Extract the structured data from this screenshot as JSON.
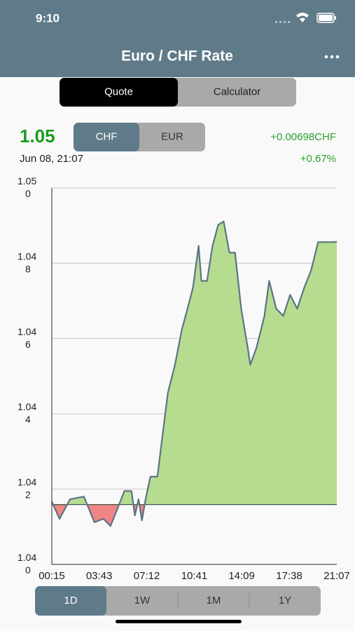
{
  "status_bar": {
    "time": "9:10"
  },
  "header": {
    "title": "Euro / CHF Rate"
  },
  "segments": {
    "items": [
      "Quote",
      "Calculator"
    ],
    "selected": 0
  },
  "quote": {
    "rate": "1.05",
    "currencies": [
      "CHF",
      "EUR"
    ],
    "selected_currency": 0,
    "change": "+0.00698CHF",
    "change_percent": "+0.67%",
    "timestamp": "Jun 08, 21:07"
  },
  "chart_data": {
    "type": "line",
    "x": [
      "00:15",
      "00:49",
      "01:35",
      "02:36",
      "03:22",
      "04:02",
      "04:33",
      "05:10",
      "05:34",
      "06:05",
      "06:20",
      "06:36",
      "06:51",
      "07:07",
      "07:28",
      "07:59",
      "08:14",
      "08:45",
      "09:16",
      "09:46",
      "10:11",
      "10:35",
      "11:00",
      "11:12",
      "11:37",
      "12:01",
      "12:26",
      "12:50",
      "13:15",
      "13:40",
      "14:07",
      "14:38",
      "14:47",
      "15:15",
      "15:49",
      "16:10",
      "16:41",
      "17:12",
      "17:42",
      "18:13",
      "18:44",
      "19:14",
      "19:45",
      "20:16",
      "20:46",
      "21:07"
    ],
    "values": [
      1.04167,
      1.04121,
      1.04173,
      1.0418,
      1.04112,
      1.04121,
      1.04102,
      1.04158,
      1.04195,
      1.04195,
      1.0413,
      1.04173,
      1.04117,
      1.04173,
      1.04233,
      1.04233,
      1.04307,
      1.04456,
      1.0453,
      1.04623,
      1.04679,
      1.04735,
      1.04846,
      1.04753,
      1.04753,
      1.04846,
      1.04902,
      1.04911,
      1.04828,
      1.04828,
      1.04679,
      1.04567,
      1.0453,
      1.04577,
      1.0466,
      1.04753,
      1.04679,
      1.0466,
      1.04716,
      1.04679,
      1.04735,
      1.04781,
      1.04856,
      1.04856,
      1.04856,
      1.04857
    ],
    "baseline": 1.04159,
    "color": "#5b7484",
    "up_color": "#b6dc8f",
    "down_color": "#ef8585",
    "xlim": [
      "00:15",
      "21:07"
    ],
    "xticks": [
      "00:15",
      "03:43",
      "07:12",
      "10:41",
      "14:09",
      "17:38",
      "21:07"
    ],
    "ylim": [
      1.04,
      1.05
    ],
    "yticks": [
      {
        "value": 1.04,
        "label": "1.040"
      },
      1.042,
      1.044,
      1.046,
      1.048,
      {
        "value": 1.05,
        "label": "1.050"
      }
    ],
    "grid": true
  },
  "ranges": {
    "items": [
      "1D",
      "1W",
      "1M",
      "1Y"
    ],
    "selected": 0
  }
}
